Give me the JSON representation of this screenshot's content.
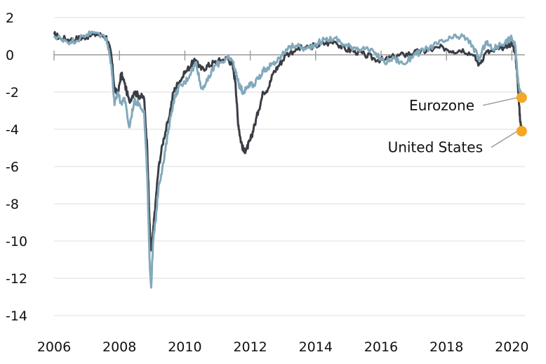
{
  "chart_data": {
    "type": "line",
    "title": "",
    "xlabel": "",
    "ylabel": "",
    "xlim": [
      2006,
      2020.4
    ],
    "ylim": [
      -14,
      2
    ],
    "x_ticks": [
      2006,
      2008,
      2010,
      2012,
      2014,
      2016,
      2018,
      2020
    ],
    "x_tick_labels": [
      "2006",
      "2008",
      "2010",
      "2012",
      "2014",
      "2016",
      "2018",
      "2020"
    ],
    "y_ticks": [
      2,
      0,
      -2,
      -4,
      -6,
      -8,
      -10,
      -12,
      -14
    ],
    "y_tick_labels": [
      "2",
      "0",
      "-2",
      "-4",
      "-6",
      "-8",
      "-10",
      "-12",
      "-14"
    ],
    "grid": true,
    "series": [
      {
        "name": "United States",
        "color": "#3b3d45",
        "end_value": -4.1,
        "x": [
          2006.0,
          2006.2,
          2006.5,
          2006.8,
          2007.0,
          2007.3,
          2007.6,
          2007.75,
          2007.85,
          2007.95,
          2008.05,
          2008.15,
          2008.3,
          2008.45,
          2008.6,
          2008.75,
          2008.85,
          2008.92,
          2008.97,
          2009.03,
          2009.1,
          2009.2,
          2009.35,
          2009.5,
          2009.65,
          2009.8,
          2010.0,
          2010.2,
          2010.35,
          2010.5,
          2010.7,
          2010.9,
          2011.1,
          2011.3,
          2011.45,
          2011.55,
          2011.62,
          2011.7,
          2011.8,
          2011.9,
          2012.0,
          2012.1,
          2012.25,
          2012.4,
          2012.55,
          2012.7,
          2012.9,
          2013.1,
          2013.4,
          2013.7,
          2014.0,
          2014.3,
          2014.6,
          2014.9,
          2015.2,
          2015.5,
          2015.8,
          2016.1,
          2016.4,
          2016.7,
          2017.0,
          2017.3,
          2017.6,
          2017.9,
          2018.2,
          2018.5,
          2018.8,
          2019.0,
          2019.2,
          2019.4,
          2019.6,
          2019.8,
          2020.0,
          2020.1,
          2020.15,
          2020.2,
          2020.25,
          2020.3
        ],
        "values": [
          1.1,
          0.9,
          0.8,
          0.9,
          1.0,
          1.1,
          1.0,
          0.0,
          -1.8,
          -2.2,
          -1.0,
          -1.5,
          -2.5,
          -2.0,
          -2.2,
          -2.3,
          -5.0,
          -9.0,
          -10.5,
          -9.5,
          -8.0,
          -6.0,
          -4.5,
          -3.5,
          -2.0,
          -1.5,
          -1.0,
          -0.5,
          -0.3,
          -0.8,
          -0.6,
          -0.4,
          -0.3,
          -0.2,
          -0.5,
          -1.5,
          -3.5,
          -4.5,
          -5.2,
          -5.0,
          -4.6,
          -4.0,
          -3.0,
          -2.0,
          -1.8,
          -1.0,
          -0.5,
          0.0,
          0.3,
          0.4,
          0.5,
          0.6,
          0.7,
          0.3,
          0.2,
          0.0,
          -0.2,
          -0.3,
          -0.1,
          0.0,
          0.1,
          0.2,
          0.3,
          0.4,
          0.2,
          0.3,
          0.0,
          -0.5,
          0.1,
          0.2,
          0.3,
          0.5,
          0.6,
          0.2,
          -0.8,
          -2.0,
          -3.5,
          -4.1
        ]
      },
      {
        "name": "Eurozone",
        "color": "#82a9bb",
        "end_value": -2.3,
        "x": [
          2006.0,
          2006.2,
          2006.5,
          2006.8,
          2007.0,
          2007.3,
          2007.6,
          2007.75,
          2007.85,
          2007.95,
          2008.05,
          2008.15,
          2008.3,
          2008.45,
          2008.6,
          2008.75,
          2008.85,
          2008.92,
          2008.97,
          2009.03,
          2009.1,
          2009.2,
          2009.35,
          2009.5,
          2009.65,
          2009.8,
          2010.0,
          2010.2,
          2010.35,
          2010.5,
          2010.7,
          2010.9,
          2011.1,
          2011.3,
          2011.45,
          2011.55,
          2011.62,
          2011.7,
          2011.8,
          2011.9,
          2012.0,
          2012.1,
          2012.25,
          2012.4,
          2012.55,
          2012.7,
          2012.9,
          2013.1,
          2013.4,
          2013.7,
          2014.0,
          2014.3,
          2014.6,
          2014.9,
          2015.2,
          2015.5,
          2015.8,
          2016.1,
          2016.4,
          2016.7,
          2017.0,
          2017.3,
          2017.6,
          2017.9,
          2018.2,
          2018.5,
          2018.8,
          2019.0,
          2019.2,
          2019.4,
          2019.6,
          2019.8,
          2020.0,
          2020.1,
          2020.15,
          2020.2,
          2020.25,
          2020.3
        ],
        "values": [
          1.0,
          0.9,
          0.7,
          0.9,
          1.1,
          1.2,
          0.9,
          -0.5,
          -2.7,
          -2.0,
          -2.6,
          -2.3,
          -3.9,
          -2.5,
          -2.6,
          -3.0,
          -6.5,
          -11.0,
          -12.5,
          -10.0,
          -9.0,
          -7.0,
          -5.8,
          -4.0,
          -2.5,
          -1.8,
          -1.5,
          -0.9,
          -0.4,
          -1.8,
          -1.4,
          -0.6,
          -0.4,
          -0.2,
          -0.3,
          -0.8,
          -1.4,
          -1.8,
          -2.0,
          -1.7,
          -1.5,
          -1.6,
          -1.3,
          -0.8,
          -0.7,
          -0.5,
          -0.2,
          0.3,
          0.5,
          0.3,
          0.6,
          0.8,
          0.9,
          0.5,
          0.4,
          0.3,
          0.1,
          -0.4,
          -0.2,
          -0.5,
          0.0,
          0.2,
          0.5,
          0.7,
          0.9,
          1.0,
          0.5,
          -0.3,
          0.7,
          0.3,
          0.5,
          0.7,
          0.9,
          0.5,
          -0.5,
          -1.5,
          -2.0,
          -2.3
        ]
      }
    ],
    "annotations": [
      {
        "label": "Eurozone",
        "series": "Eurozone",
        "value": -2.3,
        "marker_color": "#f5a623"
      },
      {
        "label": "United States",
        "series": "United States",
        "value": -4.1,
        "marker_color": "#f5a623"
      }
    ]
  }
}
